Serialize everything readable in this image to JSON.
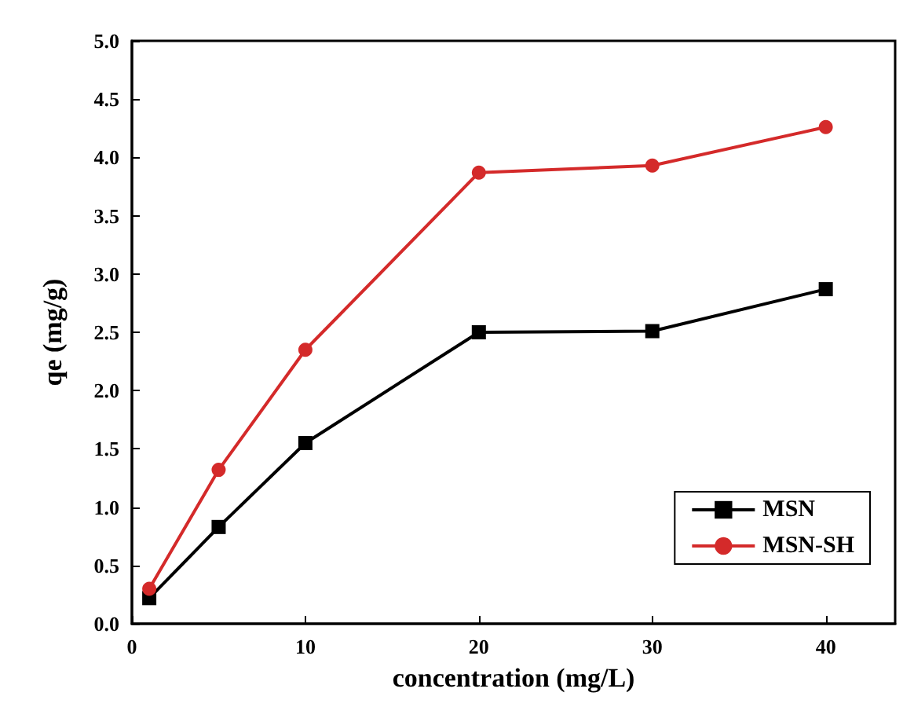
{
  "chart_data": {
    "type": "line",
    "xlabel": "concentration (mg/L)",
    "ylabel": "qe (mg/g)",
    "x": [
      1,
      5,
      10,
      20,
      30,
      40
    ],
    "series": [
      {
        "name": "MSN",
        "color": "#000000",
        "marker": "square",
        "values": [
          0.22,
          0.83,
          1.55,
          2.5,
          2.51,
          2.87
        ]
      },
      {
        "name": "MSN-SH",
        "color": "#d42a2a",
        "marker": "circle",
        "values": [
          0.3,
          1.32,
          2.35,
          3.87,
          3.93,
          4.26
        ]
      }
    ],
    "xlim": [
      0,
      44
    ],
    "xticks": [
      0,
      10,
      20,
      30,
      40
    ],
    "ylim": [
      0,
      5
    ],
    "yticks": [
      {
        "value": 0,
        "label": "0.0"
      },
      {
        "value": 0.5,
        "label": "0.5"
      },
      {
        "value": 1,
        "label": "1.0"
      },
      {
        "value": 1.5,
        "label": "1.5"
      },
      {
        "value": 2,
        "label": "2.0"
      },
      {
        "value": 2.5,
        "label": "2.5"
      },
      {
        "value": 3,
        "label": "3.0"
      },
      {
        "value": 3.5,
        "label": "3.5"
      },
      {
        "value": 4,
        "label": "4.0"
      },
      {
        "value": 4.5,
        "label": "4.5"
      },
      {
        "value": 5,
        "label": "5.0"
      }
    ],
    "grid": false,
    "legend": "bottom right",
    "line_style": "solid"
  }
}
